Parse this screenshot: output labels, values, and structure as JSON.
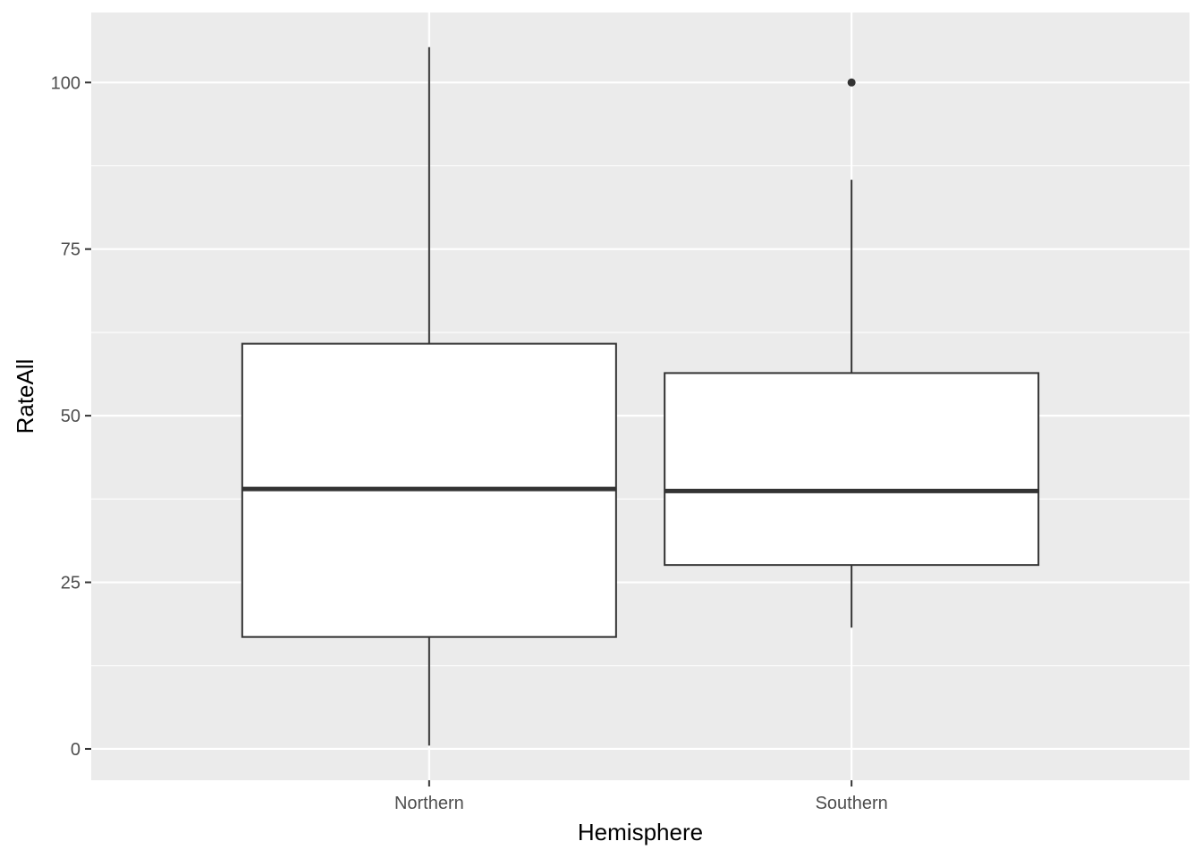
{
  "chart_data": {
    "type": "boxplot",
    "title": "",
    "xlabel": "Hemisphere",
    "ylabel": "RateAll",
    "ylim": [
      -4.7,
      110.5
    ],
    "yticks": [
      0,
      25,
      50,
      75,
      100
    ],
    "y_minor": [
      12.5,
      37.5,
      62.5,
      87.5
    ],
    "grid": true,
    "legend": "none",
    "categories": [
      "Northern",
      "Southern"
    ],
    "boxes": [
      {
        "category": "Northern",
        "whisker_low": 0.5,
        "q1": 16.8,
        "median": 39.0,
        "q3": 60.8,
        "whisker_high": 105.3,
        "outliers": []
      },
      {
        "category": "Southern",
        "whisker_low": 18.2,
        "q1": 27.6,
        "median": 38.7,
        "q3": 56.4,
        "whisker_high": 85.4,
        "outliers": [
          100.0
        ]
      }
    ],
    "colors": {
      "panel": "#ebebeb",
      "grid": "#ffffff",
      "box_fill": "#ffffff",
      "box_line": "#333333",
      "tick_text": "#4d4d4d",
      "tick_mark": "#333333"
    }
  }
}
